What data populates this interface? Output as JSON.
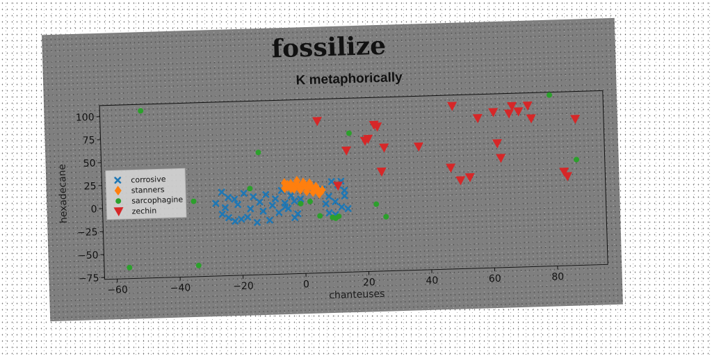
{
  "chart_data": {
    "type": "scatter",
    "suptitle": "fossilize",
    "title": "K metaphorically",
    "xlabel": "chanteuses",
    "ylabel": "hexadecane",
    "xlim": [
      -64,
      96
    ],
    "ylim": [
      -77,
      112
    ],
    "xticks": [
      -60,
      -40,
      -20,
      0,
      20,
      40,
      60,
      80
    ],
    "yticks": [
      -75,
      -50,
      -25,
      0,
      25,
      50,
      75,
      100
    ],
    "grid": false,
    "legend_position": "center-left",
    "series": [
      {
        "name": "corrosive",
        "marker": "x",
        "color": "#1f77b4",
        "points": [
          [
            -26,
            14
          ],
          [
            -24,
            8
          ],
          [
            -28,
            2
          ],
          [
            -25,
            -3
          ],
          [
            -22,
            6
          ],
          [
            -21,
            0
          ],
          [
            -19,
            12
          ],
          [
            -17,
            -5
          ],
          [
            -16,
            8
          ],
          [
            -14,
            2
          ],
          [
            -12,
            10
          ],
          [
            -10,
            -2
          ],
          [
            -9,
            5
          ],
          [
            -8,
            -10
          ],
          [
            -7,
            14
          ],
          [
            -6,
            0
          ],
          [
            -5,
            -6
          ],
          [
            -4,
            8
          ],
          [
            -3,
            -16
          ],
          [
            -2,
            -12
          ],
          [
            -18,
            -14
          ],
          [
            -20,
            -16
          ],
          [
            -13,
            -8
          ],
          [
            -11,
            -18
          ],
          [
            -15,
            -20
          ],
          [
            -22,
            -18
          ],
          [
            -26,
            -10
          ],
          [
            -24,
            -14
          ],
          [
            6,
            14
          ],
          [
            8,
            6
          ],
          [
            10,
            0
          ],
          [
            12,
            -6
          ],
          [
            13,
            12
          ],
          [
            11,
            18
          ],
          [
            9,
            22
          ],
          [
            7,
            -2
          ],
          [
            12,
            22
          ],
          [
            14,
            -8
          ],
          [
            13,
            6
          ],
          [
            8,
            -12
          ],
          [
            10,
            -14
          ],
          [
            -1,
            4
          ],
          [
            -3,
            2
          ],
          [
            -6,
            -4
          ]
        ]
      },
      {
        "name": "stanners",
        "marker": "diamond",
        "color": "#ff7f0e",
        "points": [
          [
            -6,
            22
          ],
          [
            -5,
            20
          ],
          [
            -4,
            21
          ],
          [
            -3,
            18
          ],
          [
            -2,
            20
          ],
          [
            -1,
            17
          ],
          [
            0,
            19
          ],
          [
            1,
            16
          ],
          [
            2,
            18
          ],
          [
            3,
            15
          ],
          [
            4,
            14
          ],
          [
            5,
            12
          ],
          [
            -5,
            18
          ],
          [
            -4,
            16
          ],
          [
            -3,
            15
          ],
          [
            -1,
            14
          ],
          [
            1,
            12
          ],
          [
            3,
            11
          ],
          [
            0,
            22
          ],
          [
            2,
            21
          ],
          [
            -2,
            24
          ],
          [
            4,
            17
          ],
          [
            6,
            13
          ],
          [
            5,
            9
          ],
          [
            -6,
            16
          ]
        ]
      },
      {
        "name": "sarcophagine",
        "marker": "circle",
        "color": "#2ca02c",
        "points": [
          [
            -51,
            105
          ],
          [
            -56,
            -65
          ],
          [
            -35,
            5
          ],
          [
            -34,
            -65
          ],
          [
            -14,
            56
          ],
          [
            -17,
            17
          ],
          [
            -1,
            -1
          ],
          [
            2,
            1
          ],
          [
            5,
            -15
          ],
          [
            9,
            -17
          ],
          [
            10,
            -18
          ],
          [
            11,
            -16
          ],
          [
            15,
            74
          ],
          [
            23,
            -4
          ],
          [
            26,
            -18
          ],
          [
            79,
            109
          ],
          [
            87,
            38
          ]
        ]
      },
      {
        "name": "zechin",
        "marker": "triangle-down",
        "color": "#d62728",
        "points": [
          [
            5,
            88
          ],
          [
            11,
            17
          ],
          [
            14,
            55
          ],
          [
            20,
            65
          ],
          [
            21,
            67
          ],
          [
            23,
            82
          ],
          [
            24,
            80
          ],
          [
            25,
            31
          ],
          [
            26,
            57
          ],
          [
            37,
            57
          ],
          [
            47,
            33
          ],
          [
            48,
            100
          ],
          [
            50,
            19
          ],
          [
            53,
            22
          ],
          [
            56,
            86
          ],
          [
            61,
            92
          ],
          [
            62,
            58
          ],
          [
            63,
            42
          ],
          [
            66,
            90
          ],
          [
            67,
            98
          ],
          [
            69,
            92
          ],
          [
            72,
            98
          ],
          [
            73,
            84
          ],
          [
            83,
            25
          ],
          [
            84,
            20
          ],
          [
            87,
            82
          ]
        ]
      }
    ]
  }
}
